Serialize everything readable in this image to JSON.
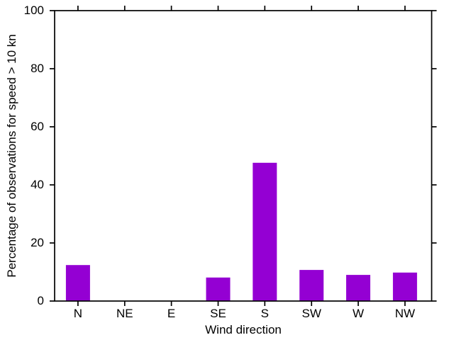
{
  "chart_data": {
    "type": "bar",
    "title": "",
    "xlabel": "Wind direction",
    "ylabel": "Percentage of observations for speed > 10 kn",
    "categories": [
      "N",
      "NE",
      "E",
      "SE",
      "S",
      "SW",
      "W",
      "NW"
    ],
    "values": [
      12.4,
      0,
      0,
      8.1,
      47.6,
      10.7,
      9.0,
      9.8
    ],
    "ylim": [
      0,
      100
    ],
    "yticks": [
      0,
      20,
      40,
      60,
      80,
      100
    ],
    "bar_color": "#9400D3",
    "axis_color": "#000000",
    "background": "#ffffff",
    "grid": false,
    "legend": null
  }
}
